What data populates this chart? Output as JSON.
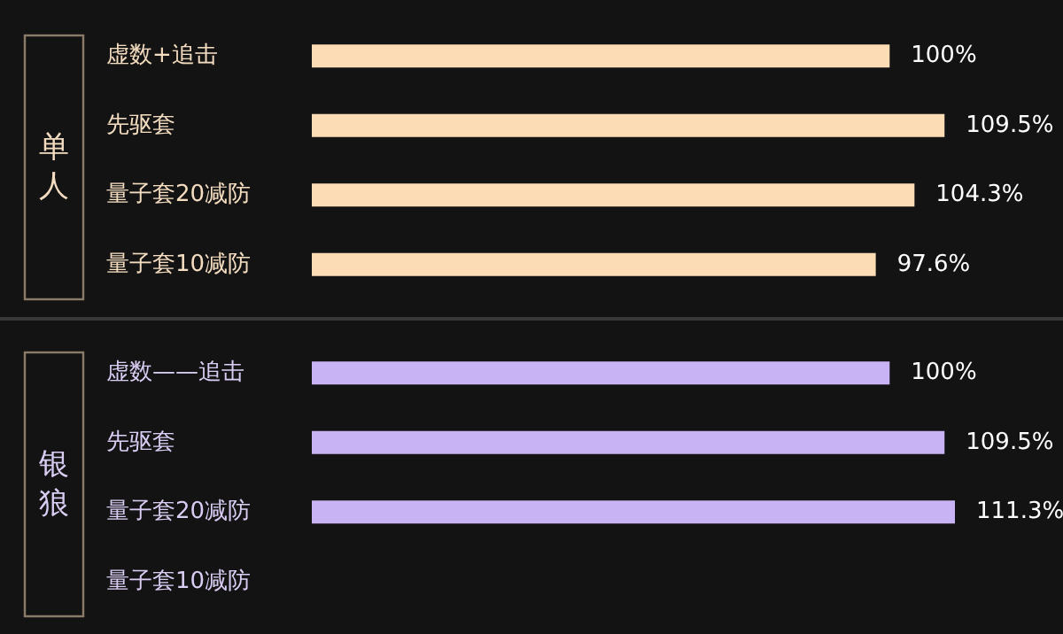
{
  "chart_data": [
    {
      "type": "bar",
      "orientation": "horizontal",
      "title": "单人",
      "categories": [
        "虚数+追击",
        "先驱套",
        "量子套20减防",
        "量子套10减防"
      ],
      "series": [
        {
          "color": "#fcdcb4",
          "values": [
            100,
            109.5,
            104.3,
            97.6
          ],
          "value_labels": [
            "100%",
            "109.5%",
            "104.3%",
            "97.6%"
          ]
        }
      ]
    },
    {
      "type": "bar",
      "orientation": "horizontal",
      "title": "银狼",
      "categories": [
        "虚数——追击",
        "先驱套",
        "量子套20减防",
        "量子套10减防"
      ],
      "series": [
        {
          "color": "#c8b4f4",
          "values": [
            100,
            109.5,
            111.3,
            null
          ],
          "value_labels": [
            "100%",
            "109.5%",
            "111.3%",
            null
          ]
        }
      ]
    }
  ]
}
